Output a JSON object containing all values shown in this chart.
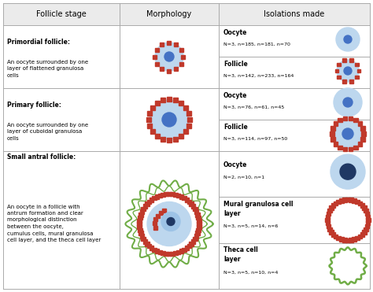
{
  "title_row": [
    "Follicle stage",
    "Morphology",
    "Isolations made"
  ],
  "background": "#ffffff",
  "header_bg": "#ebebeb",
  "colors": {
    "light_blue": "#bdd7ee",
    "light_blue2": "#9dc3e6",
    "blue_dot": "#4472c4",
    "dark_blue_dot": "#1f3864",
    "red_brick": "#c0392b",
    "green_ring": "#70ad47",
    "white": "#ffffff",
    "grid": "#aaaaaa"
  },
  "rows": [
    {
      "stage_title": "Primordial follicle:",
      "stage_desc": "An oocyte surrounded by one\nlayer of flattened granulosa\ncells"
    },
    {
      "stage_title": "Primary follicle:",
      "stage_desc": "An oocyte surrounded by one\nlayer of cuboidal granulosa\ncells"
    },
    {
      "stage_title": "Small antral follicle:",
      "stage_desc": "An oocyte in a follicle with\nantrum formation and clear\nmorphological distinction\nbetween the oocyte,\ncumulus cells, mural granulosa\ncell layer, and the theca cell layer"
    }
  ],
  "iso_rows": [
    [
      {
        "name": "Oocyte",
        "stats": "N=3, n=185, n=181, n=70"
      },
      {
        "name": "Follicle",
        "stats": "N=3, n=142, n=233, n=164"
      }
    ],
    [
      {
        "name": "Oocyte",
        "stats": "N=3, n=76, n=61, n=45"
      },
      {
        "name": "Follicle",
        "stats": "N=3, n=114, n=97, n=50"
      }
    ],
    [
      {
        "name": "Oocyte",
        "stats": "N=2, n=10, n=1"
      },
      {
        "name": "Mural granulosa cell\nlayer",
        "stats": "N=3, n=5, n=14, n=6"
      },
      {
        "name": "Theca cell\nlayer",
        "stats": "N=3, n=5, n=10, n=4"
      }
    ]
  ]
}
